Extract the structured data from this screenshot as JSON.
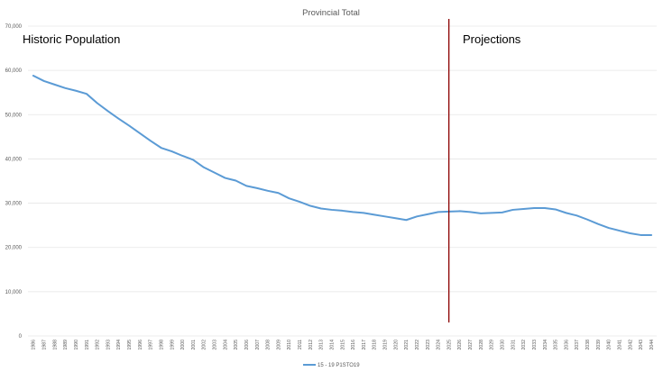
{
  "chart_data": {
    "type": "line",
    "title": "Provincial Total",
    "annotations": {
      "left": "Historic Population",
      "right": "Projections"
    },
    "divider_at": "2025",
    "ylim": [
      0,
      70000
    ],
    "yticks": [
      "0",
      "10,000",
      "20,000",
      "30,000",
      "40,000",
      "50,000",
      "60,000",
      "70,000"
    ],
    "ytick_values": [
      0,
      10000,
      20000,
      30000,
      40000,
      50000,
      60000,
      70000
    ],
    "grid": true,
    "legend_position": "bottom",
    "categories": [
      "1986",
      "1987",
      "1988",
      "1989",
      "1990",
      "1991",
      "1992",
      "1993",
      "1994",
      "1995",
      "1996",
      "1997",
      "1998",
      "1999",
      "2000",
      "2001",
      "2002",
      "2003",
      "2004",
      "2005",
      "2006",
      "2007",
      "2008",
      "2009",
      "2010",
      "2011",
      "2012",
      "2013",
      "2014",
      "2015",
      "2016",
      "2017",
      "2018",
      "2019",
      "2020",
      "2021",
      "2022",
      "2023",
      "2024",
      "2025",
      "2026",
      "2027",
      "2028",
      "2029",
      "2030",
      "2031",
      "2032",
      "2033",
      "2034",
      "2035",
      "2036",
      "2037",
      "2038",
      "2039",
      "2040",
      "2041",
      "2042",
      "2043",
      "2044"
    ],
    "series": [
      {
        "name": "15 - 19 P1STO19",
        "color": "#5b9bd5",
        "values": [
          58800,
          57600,
          56800,
          56000,
          55400,
          54700,
          52600,
          50800,
          49100,
          47500,
          45800,
          44100,
          42500,
          41700,
          40700,
          39800,
          38100,
          36900,
          35700,
          35100,
          33900,
          33400,
          32800,
          32300,
          31100,
          30300,
          29400,
          28800,
          28500,
          28300,
          28000,
          27800,
          27400,
          27000,
          26600,
          26200,
          27000,
          27500,
          28000,
          28100,
          28200,
          28000,
          27700,
          27800,
          27900,
          28500,
          28700,
          28900,
          28900,
          28600,
          27800,
          27200,
          26300,
          25300,
          24400,
          23800,
          23200,
          22800,
          22800
        ]
      }
    ]
  }
}
